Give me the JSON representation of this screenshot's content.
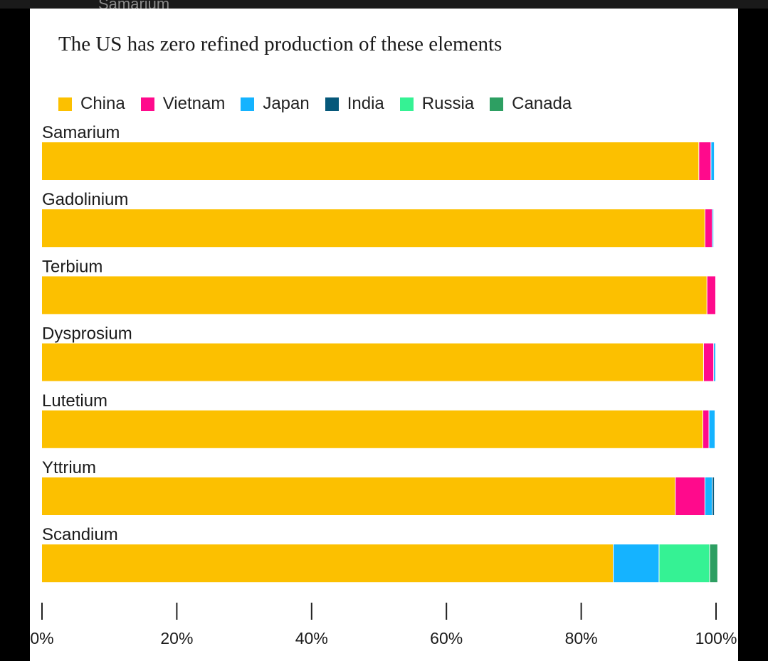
{
  "top_cut_label": "Samarium",
  "colors": {
    "China": "#fcc000",
    "Vietnam": "#ff0a8c",
    "Japan": "#15b3ff",
    "India": "#06587a",
    "Russia": "#35f294",
    "Canada": "#2d9f62"
  },
  "chart_data": {
    "type": "bar",
    "orientation": "horizontal",
    "stacked": true,
    "title": "The US has zero refined production of these elements",
    "xlabel": "",
    "ylabel": "",
    "xlim": [
      0,
      100
    ],
    "x_ticks": [
      "0%",
      "20%",
      "40%",
      "60%",
      "80%",
      "100%"
    ],
    "legend_position": "top-left",
    "grid": false,
    "categories": [
      "Samarium",
      "Gadolinium",
      "Terbium",
      "Dysprosium",
      "Lutetium",
      "Yttrium",
      "Scandium"
    ],
    "series": [
      {
        "name": "China",
        "color_key": "China",
        "values": [
          97.5,
          98.4,
          98.7,
          98.2,
          98.1,
          94.0,
          84.8
        ]
      },
      {
        "name": "Vietnam",
        "color_key": "Vietnam",
        "values": [
          1.8,
          1.1,
          1.3,
          1.5,
          0.9,
          4.4,
          0
        ]
      },
      {
        "name": "Japan",
        "color_key": "Japan",
        "values": [
          0.5,
          0.2,
          0,
          0.3,
          0.9,
          1.1,
          6.8
        ]
      },
      {
        "name": "India",
        "color_key": "India",
        "values": [
          0,
          0,
          0,
          0,
          0,
          0.3,
          0
        ]
      },
      {
        "name": "Russia",
        "color_key": "Russia",
        "values": [
          0,
          0,
          0,
          0,
          0,
          0,
          7.5
        ]
      },
      {
        "name": "Canada",
        "color_key": "Canada",
        "values": [
          0,
          0,
          0,
          0,
          0,
          0,
          1.2
        ]
      }
    ]
  }
}
